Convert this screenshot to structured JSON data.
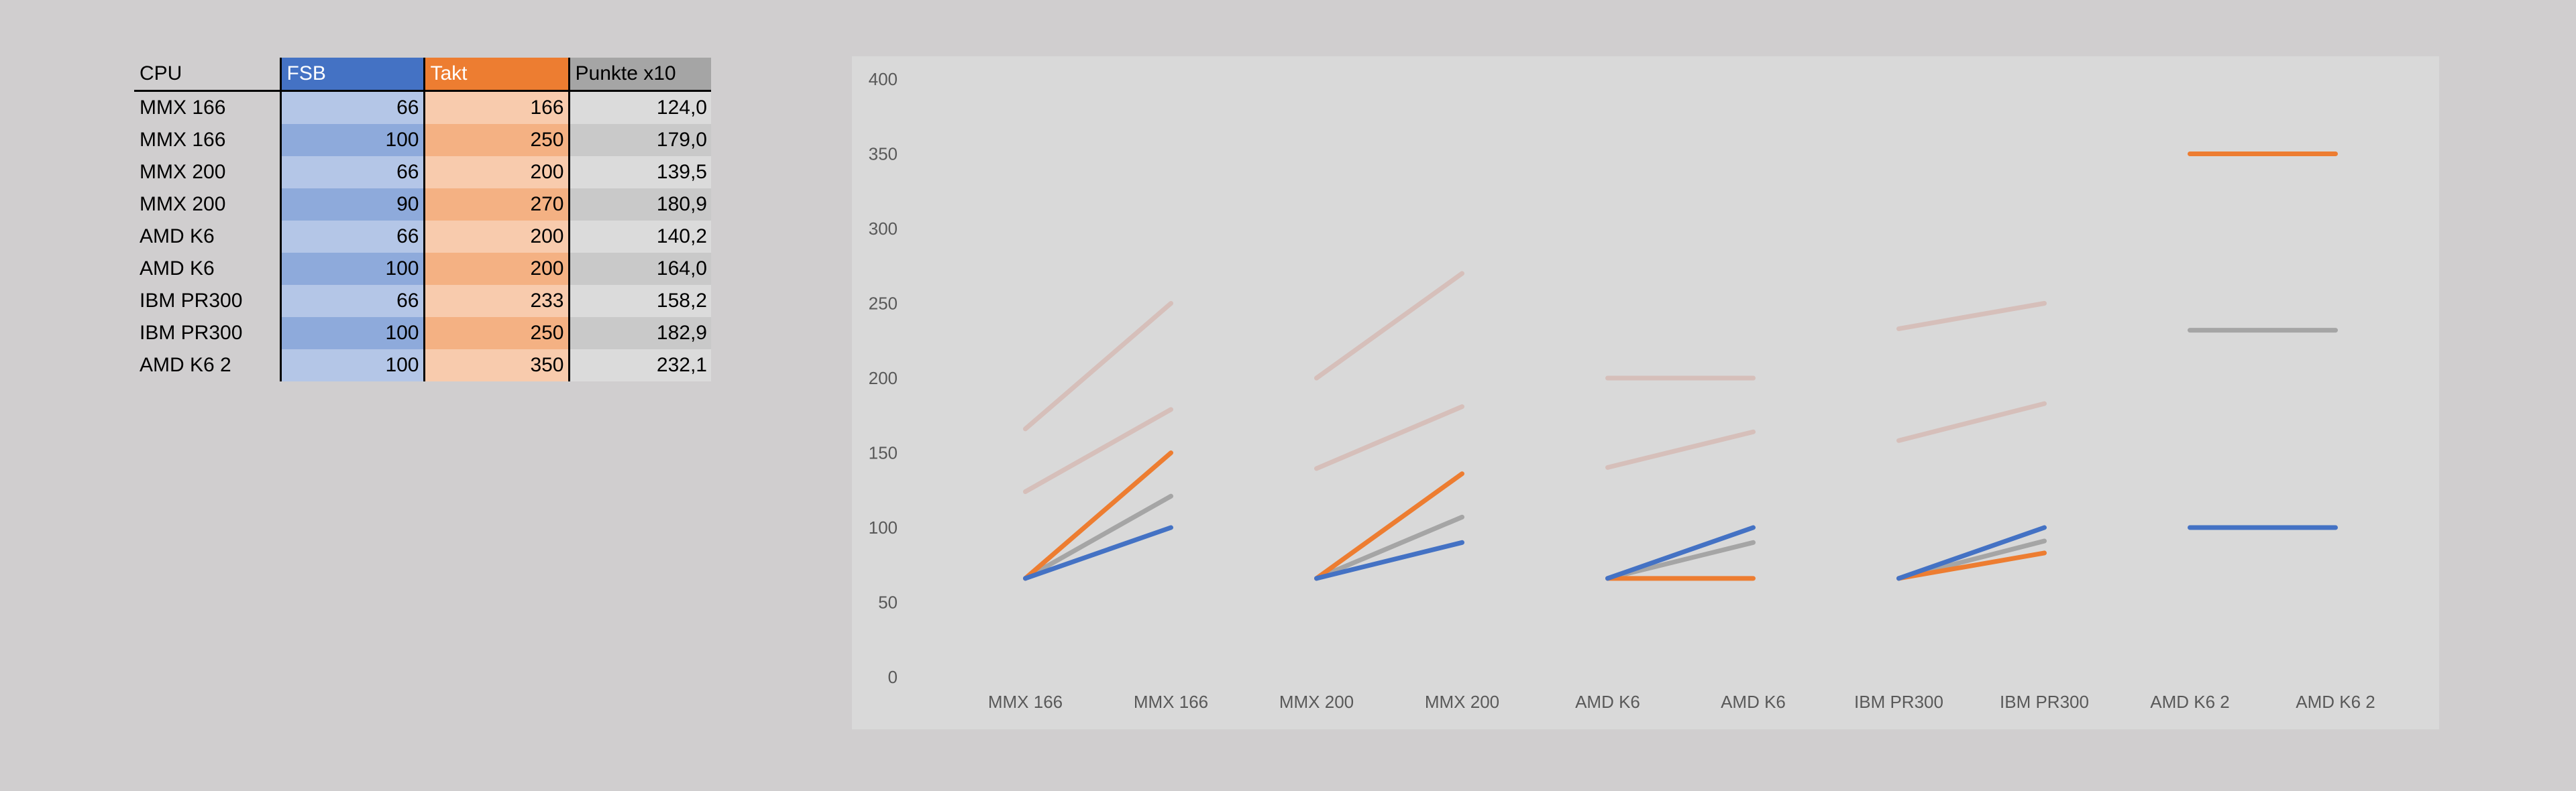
{
  "table": {
    "headers": [
      "CPU",
      "FSB",
      "Takt",
      "Punkte x10"
    ],
    "rows": [
      {
        "cpu": "MMX 166",
        "fsb": "66",
        "takt": "166",
        "punkte": "124,0"
      },
      {
        "cpu": "MMX 166",
        "fsb": "100",
        "takt": "250",
        "punkte": "179,0"
      },
      {
        "cpu": "MMX 200",
        "fsb": "66",
        "takt": "200",
        "punkte": "139,5"
      },
      {
        "cpu": "MMX 200",
        "fsb": "90",
        "takt": "270",
        "punkte": "180,9"
      },
      {
        "cpu": "AMD K6",
        "fsb": "66",
        "takt": "200",
        "punkte": "140,2"
      },
      {
        "cpu": "AMD K6",
        "fsb": "100",
        "takt": "200",
        "punkte": "164,0"
      },
      {
        "cpu": "IBM PR300",
        "fsb": "66",
        "takt": "233",
        "punkte": "158,2"
      },
      {
        "cpu": "IBM PR300",
        "fsb": "100",
        "takt": "250",
        "punkte": "182,9"
      },
      {
        "cpu": "AMD K6 2",
        "fsb": "100",
        "takt": "350",
        "punkte": "232,1"
      }
    ]
  },
  "colors": {
    "page_bg": "#d0cecf",
    "chart_bg": "#d9d9d9",
    "fsb_header": "#4472c4",
    "fsb_light": "#b4c6e7",
    "fsb_dark": "#8eaadb",
    "takt_header": "#ed7d31",
    "takt_light": "#f8cbad",
    "takt_dark": "#f4b183",
    "pkt_header": "#a5a5a5",
    "pkt_light": "#dbdbdb",
    "pkt_dark": "#c9c9c9",
    "fsb_line": "#4472c4",
    "takt_line": "#ed7d31",
    "pkt_line": "#a5a5a5",
    "rel_line": "#d6bfba"
  },
  "chart_data": {
    "type": "line",
    "ylim": [
      0,
      400
    ],
    "yticks": [
      0,
      50,
      100,
      150,
      200,
      250,
      300,
      350,
      400
    ],
    "grid": false,
    "legend": "none",
    "categories": [
      "MMX 166",
      "MMX 166",
      "MMX 200",
      "MMX 200",
      "AMD K6",
      "AMD K6",
      "IBM PR300",
      "IBM PR300",
      "AMD K6 2",
      "AMD K6 2"
    ],
    "groups": [
      {
        "labels": [
          "MMX 166",
          "MMX 166"
        ],
        "fsb": [
          66,
          100
        ],
        "takt": [
          66,
          150
        ],
        "punkte": [
          66,
          121
        ],
        "takt_abs": [
          166,
          250
        ],
        "punkte_abs": [
          124,
          179
        ]
      },
      {
        "labels": [
          "MMX 200",
          "MMX 200"
        ],
        "fsb": [
          66,
          90
        ],
        "takt": [
          66,
          136
        ],
        "punkte": [
          66,
          107
        ],
        "takt_abs": [
          200,
          270
        ],
        "punkte_abs": [
          139.5,
          180.9
        ]
      },
      {
        "labels": [
          "AMD K6",
          "AMD K6"
        ],
        "fsb": [
          66,
          100
        ],
        "takt": [
          66,
          66
        ],
        "punkte": [
          66,
          90
        ],
        "takt_abs": [
          200,
          200
        ],
        "punkte_abs": [
          140.2,
          164
        ]
      },
      {
        "labels": [
          "IBM PR300",
          "IBM PR300"
        ],
        "fsb": [
          66,
          100
        ],
        "takt": [
          66,
          83
        ],
        "punkte": [
          66,
          91
        ],
        "takt_abs": [
          233,
          250
        ],
        "punkte_abs": [
          158.2,
          182.9
        ]
      },
      {
        "labels": [
          "AMD K6 2",
          "AMD K6 2"
        ],
        "fsb": [
          100,
          100
        ],
        "takt": [
          350,
          350
        ],
        "punkte": [
          232,
          232
        ],
        "takt_abs": [],
        "punkte_abs": []
      }
    ]
  }
}
